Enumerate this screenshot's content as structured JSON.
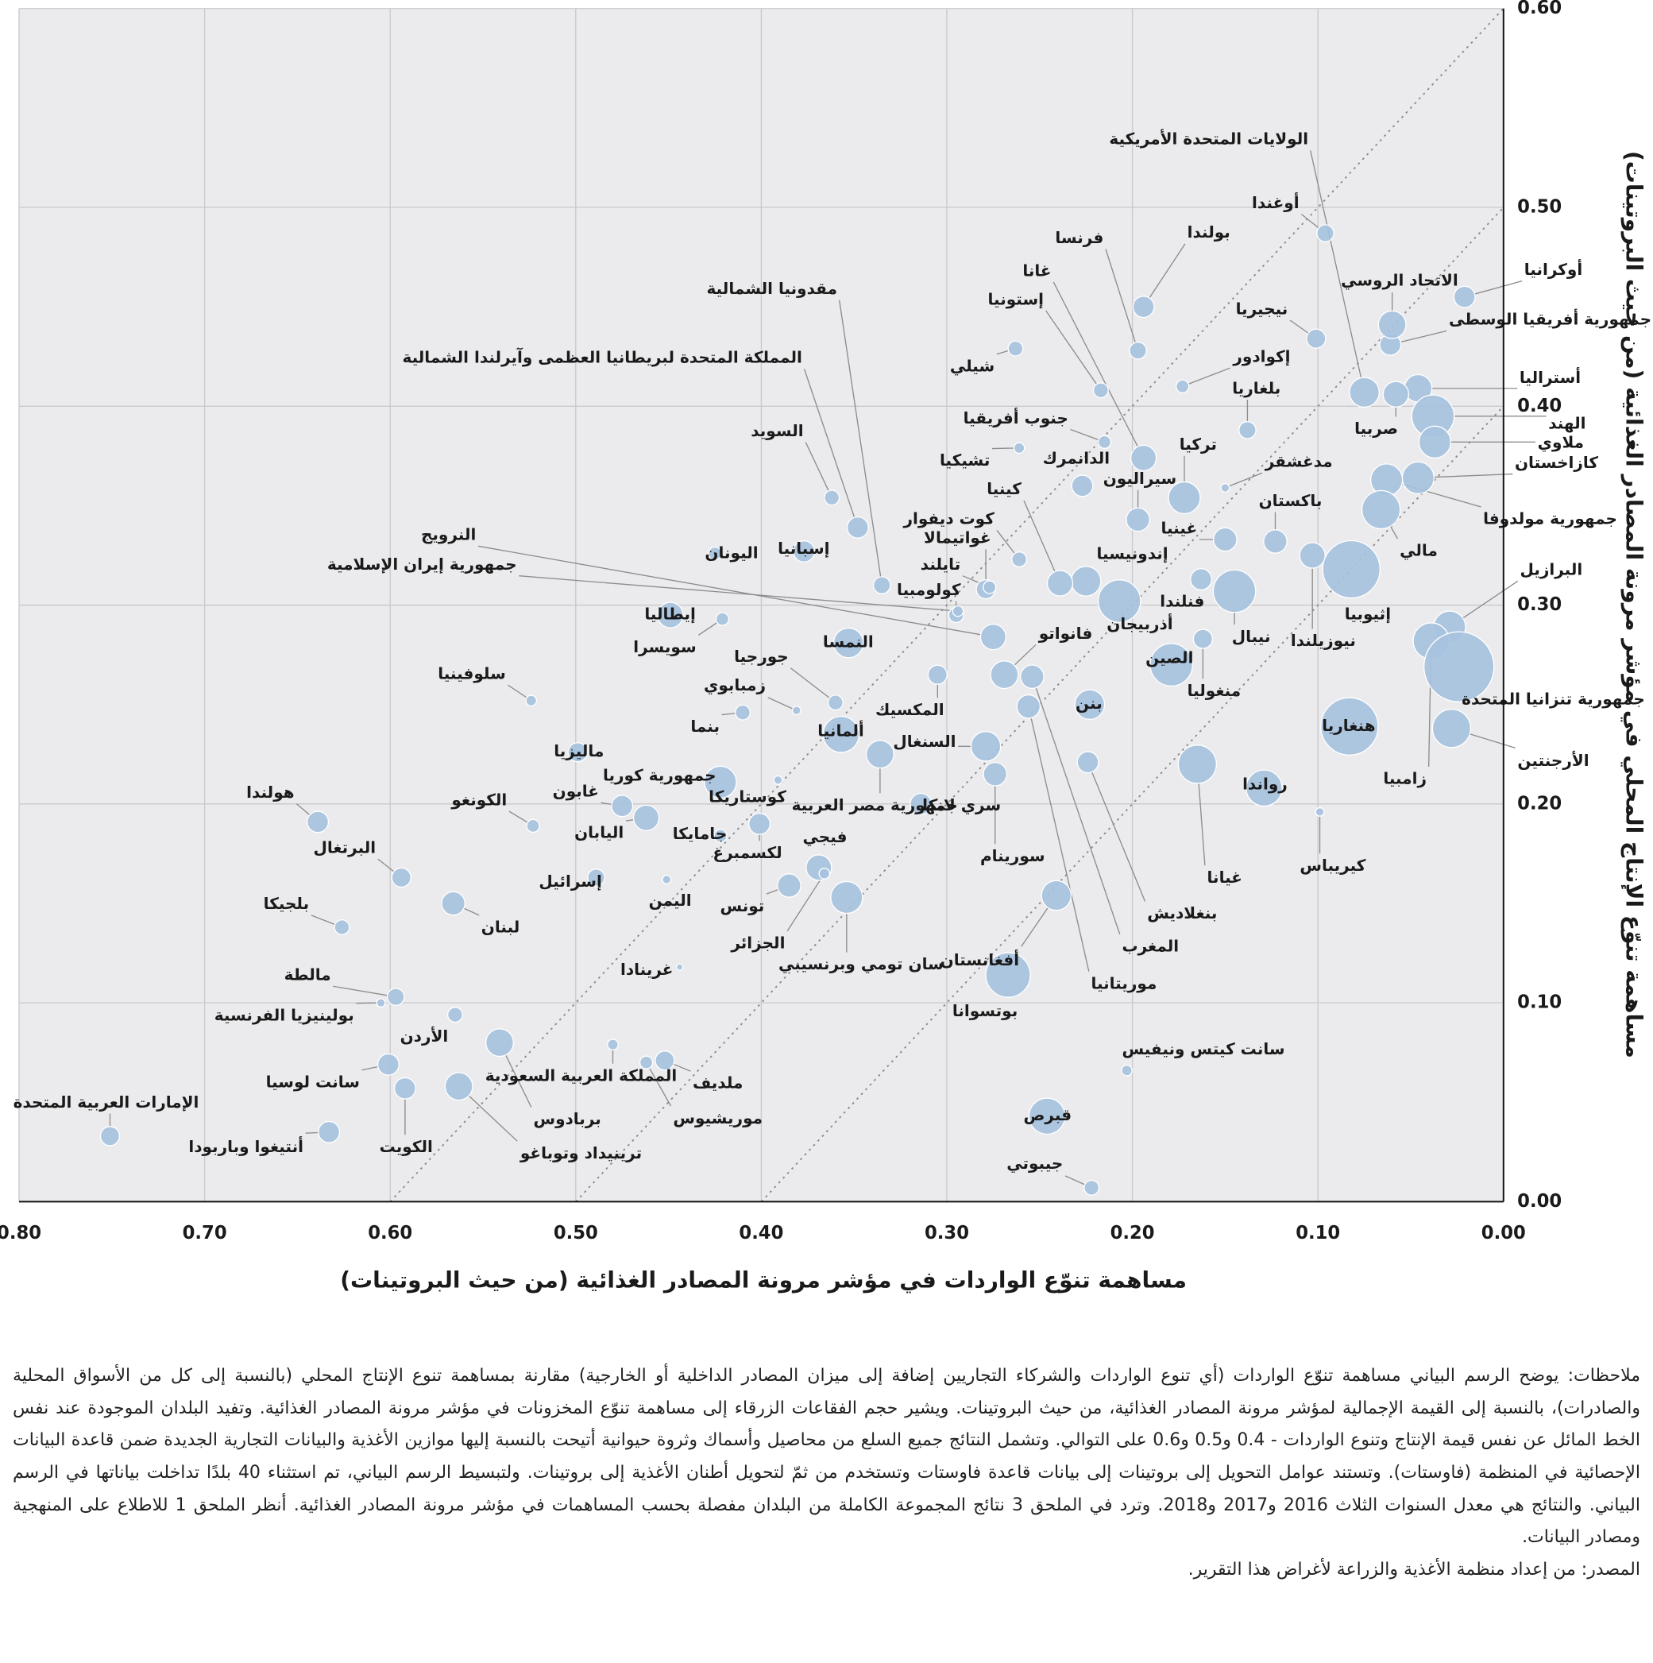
{
  "chart_data": {
    "type": "bubble",
    "xlabel": "مساهمة تنوّع الواردات في مؤشر مرونة المصادر الغذائية (من حيث البروتينات)",
    "ylabel": "مساهمة تنوّع الإنتاج المحلي في مؤشر مرونة المصادر الغذائية (من حيث البروتينات)",
    "xlim": [
      0.8,
      0
    ],
    "ylim": [
      0,
      0.6
    ],
    "xticks": [
      {
        "value": 0.8,
        "label": "0.80"
      },
      {
        "value": 0.7,
        "label": "0.70"
      },
      {
        "value": 0.6,
        "label": "0.60"
      },
      {
        "value": 0.5,
        "label": "0.50"
      },
      {
        "value": 0.4,
        "label": "0.40"
      },
      {
        "value": 0.3,
        "label": "0.30"
      },
      {
        "value": 0.2,
        "label": "0.20"
      },
      {
        "value": 0.1,
        "label": "0.10"
      },
      {
        "value": 0,
        "label": "0.00"
      }
    ],
    "yticks": [
      {
        "value": 0,
        "label": "0.00"
      },
      {
        "value": 0.1,
        "label": "0.10"
      },
      {
        "value": 0.2,
        "label": "0.20"
      },
      {
        "value": 0.3,
        "label": "0.30"
      },
      {
        "value": 0.4,
        "label": "0.40"
      },
      {
        "value": 0.5,
        "label": "0.50"
      },
      {
        "value": 0.6,
        "label": "0.60"
      }
    ],
    "grid": true,
    "color": "#a7c2de",
    "diagonals": [
      0.4,
      0.5,
      0.6
    ],
    "labels": [
      "أوكرانيا",
      "جمهورية أفريقيا الوسطى",
      "الاتحاد الروسي",
      "أستراليا",
      "الهند",
      "ملاوي",
      "كازاخستان",
      "جمهورية مولدوفا",
      "مالي",
      "صربيا",
      "الولايات المتحدة الأمريكية",
      "أوغندا",
      "نيجيريا",
      "إكوادور",
      "بلغاريا",
      "بولندا",
      "فرنسا",
      "غانا",
      "إستونيا",
      "شيلي",
      "جنوب أفريقيا",
      "تشيكيا",
      "الدانمرك",
      "تركيا",
      "سيراليون",
      "مدغشقر",
      "باكستان",
      "غينيا",
      "إندونيسيا",
      "كينيا",
      "كوت ديفوار",
      "غواتيمالا",
      "تايلند",
      "كولومبيا",
      "فنلندا",
      "أذربيجان",
      "فانواتو",
      "إثيوبيا",
      "نيوزيلندا",
      "نيبال",
      "الصين",
      "منغوليا",
      "البرازيل",
      "زامبيا",
      "جمهورية تنزانيا المتحدة",
      "الأرجنتين",
      "هنغاريا",
      "رواندا",
      "غيانا",
      "كيريباس",
      "بنن",
      "بنغلاديش",
      "المغرب",
      "موريتانيا",
      "سورينام",
      "السنغال",
      "المكسيك",
      "سري لانكا",
      "أفغانستان",
      "بوتسوانا",
      "سانت كيتس ونيفيس",
      "قبرص",
      "جيبوتي",
      "النرويج",
      "جمهورية إيران الإسلامية",
      "مقدونيا الشمالية",
      "المملكة المتحدة لبريطانيا العظمى وآيرلندا الشمالية",
      "السويد",
      "اليونان",
      "إسبانيا",
      "إيطاليا",
      "سويسرا",
      "النمسا",
      "سلوفينيا",
      "جورجيا",
      "زمبابوي",
      "بنما",
      "ألمانيا",
      "جمهورية مصر العربية",
      "ماليزيا",
      "جمهورية كوريا",
      "كوستاريكا",
      "غابون",
      "الكونغو",
      "هولندا",
      "اليابان",
      "جامايكا",
      "لكسمبرغ",
      "فيجي",
      "إسرائيل",
      "اليمن",
      "تونس",
      "البرتغال",
      "بلجيكا",
      "لبنان",
      "الجزائر",
      "سان تومي وبرنسيبي",
      "غرينادا",
      "مالطة",
      "بولينيزيا الفرنسية",
      "الأردن",
      "سانت لوسيا",
      "الكويت",
      "بربادوس",
      "ترينيداد وتوباغو",
      "المملكة العربية السعودية",
      "ملديف",
      "موريشيوس",
      "أنتيغوا وباربودا",
      "الإمارات العربية المتحدة"
    ],
    "x": [
      0.021,
      0.061,
      0.06,
      0.046,
      0.038,
      0.037,
      0.046,
      0.063,
      0.066,
      0.058,
      0.075,
      0.096,
      0.101,
      0.173,
      0.138,
      0.194,
      0.197,
      0.194,
      0.217,
      0.263,
      0.215,
      0.261,
      0.227,
      0.172,
      0.197,
      0.15,
      0.123,
      0.15,
      0.225,
      0.239,
      0.261,
      0.279,
      0.277,
      0.295,
      0.163,
      0.207,
      0.269,
      0.082,
      0.103,
      0.145,
      0.179,
      0.162,
      0.029,
      0.039,
      0.024,
      0.028,
      0.083,
      0.129,
      0.165,
      0.099,
      0.223,
      0.224,
      0.254,
      0.256,
      0.274,
      0.279,
      0.305,
      0.314,
      0.241,
      0.267,
      0.203,
      0.246,
      0.222,
      0.275,
      0.294,
      0.335,
      0.348,
      0.362,
      0.425,
      0.377,
      0.449,
      0.421,
      0.353,
      0.524,
      0.36,
      0.381,
      0.41,
      0.357,
      0.336,
      0.499,
      0.422,
      0.391,
      0.475,
      0.523,
      0.639,
      0.462,
      0.422,
      0.401,
      0.369,
      0.489,
      0.451,
      0.385,
      0.594,
      0.626,
      0.566,
      0.366,
      0.354,
      0.444,
      0.597,
      0.605,
      0.565,
      0.601,
      0.592,
      0.541,
      0.563,
      0.48,
      0.452,
      0.462,
      0.633,
      0.751
    ],
    "values": [
      0.455,
      0.431,
      0.441,
      0.409,
      0.395,
      0.382,
      0.364,
      0.363,
      0.348,
      0.406,
      0.407,
      0.487,
      0.434,
      0.41,
      0.388,
      0.45,
      0.428,
      0.374,
      0.408,
      0.429,
      0.382,
      0.379,
      0.36,
      0.354,
      0.343,
      0.359,
      0.332,
      0.333,
      0.312,
      0.311,
      0.323,
      0.308,
      0.309,
      0.295,
      0.313,
      0.302,
      0.265,
      0.318,
      0.325,
      0.307,
      0.27,
      0.283,
      0.289,
      0.282,
      0.269,
      0.238,
      0.239,
      0.208,
      0.22,
      0.196,
      0.25,
      0.221,
      0.264,
      0.249,
      0.215,
      0.229,
      0.265,
      0.2,
      0.154,
      0.114,
      0.066,
      0.043,
      0.007,
      0.284,
      0.297,
      0.31,
      0.339,
      0.354,
      0.326,
      0.327,
      0.295,
      0.293,
      0.281,
      0.252,
      0.251,
      0.247,
      0.246,
      0.235,
      0.225,
      0.226,
      0.211,
      0.212,
      0.199,
      0.189,
      0.191,
      0.193,
      0.184,
      0.19,
      0.168,
      0.163,
      0.162,
      0.159,
      0.163,
      0.138,
      0.15,
      0.165,
      0.153,
      0.118,
      0.103,
      0.1,
      0.094,
      0.069,
      0.057,
      0.08,
      0.058,
      0.079,
      0.071,
      0.07,
      0.035,
      0.033
    ],
    "sizes": [
      10,
      10,
      13,
      13,
      20,
      15,
      15,
      15,
      18,
      12,
      14,
      8,
      9,
      6,
      8,
      10,
      8,
      12,
      7,
      7,
      6,
      5,
      10,
      15,
      11,
      4,
      11,
      11,
      14,
      12,
      7,
      9,
      6,
      7,
      10,
      20,
      13,
      27,
      12,
      20,
      20,
      9,
      15,
      17,
      33,
      18,
      27,
      17,
      18,
      4,
      14,
      10,
      11,
      11,
      11,
      14,
      9,
      10,
      14,
      21,
      5,
      17,
      7,
      12,
      5,
      8,
      10,
      7,
      6,
      10,
      12,
      6,
      14,
      5,
      7,
      4,
      7,
      17,
      13,
      9,
      15,
      4,
      10,
      6,
      10,
      12,
      6,
      10,
      12,
      8,
      4,
      11,
      9,
      7,
      11,
      5,
      15,
      3,
      8,
      4,
      7,
      10,
      10,
      13,
      13,
      5,
      9,
      6,
      10,
      9
    ]
  },
  "notes": "ملاحظات: يوضح الرسم البياني مساهمة تنوّع الواردات (أي تنوع الواردات والشركاء التجاريين إضافة إلى ميزان المصادر الداخلية أو الخارجية) مقارنة بمساهمة تنوع الإنتاج المحلي (بالنسبة إلى كل من الأسواق المحلية والصادرات)، بالنسبة إلى القيمة الإجمالية لمؤشر مرونة المصادر الغذائية، من حيث البروتينات. ويشير حجم الفقاعات الزرقاء إلى مساهمة تنوّع المخزونات في مؤشر مرونة المصادر الغذائية. وتفيد البلدان الموجودة عند نفس الخط المائل عن نفس قيمة الإنتاج وتنوع الواردات - 0.4 و0.5 و0.6 على التوالي. وتشمل النتائج جميع السلع من محاصيل وأسماك وثروة حيوانية أتيحت بالنسبة إليها موازين الأغذية والبيانات التجارية الجديدة ضمن قاعدة البيانات الإحصائية في المنظمة (فاوستات). وتستند عوامل التحويل إلى بروتينات إلى بيانات قاعدة فاوستات وتستخدم من ثمّ لتحويل أطنان الأغذية إلى بروتينات. ولتبسيط الرسم البياني، تم استثناء 40 بلدًا تداخلت بياناتها في الرسم البياني. والنتائج هي معدل السنوات الثلاث 2016 و2017 و2018. وترد في الملحق 3 نتائج المجموعة الكاملة من البلدان مفصلة بحسب المساهمات في مؤشر مرونة المصادر الغذائية. أنظر الملحق 1 للاطلاع على المنهجية ومصادر البيانات.",
  "source": "المصدر: من إعداد منظمة الأغذية والزراعة لأغراض هذا التقرير."
}
